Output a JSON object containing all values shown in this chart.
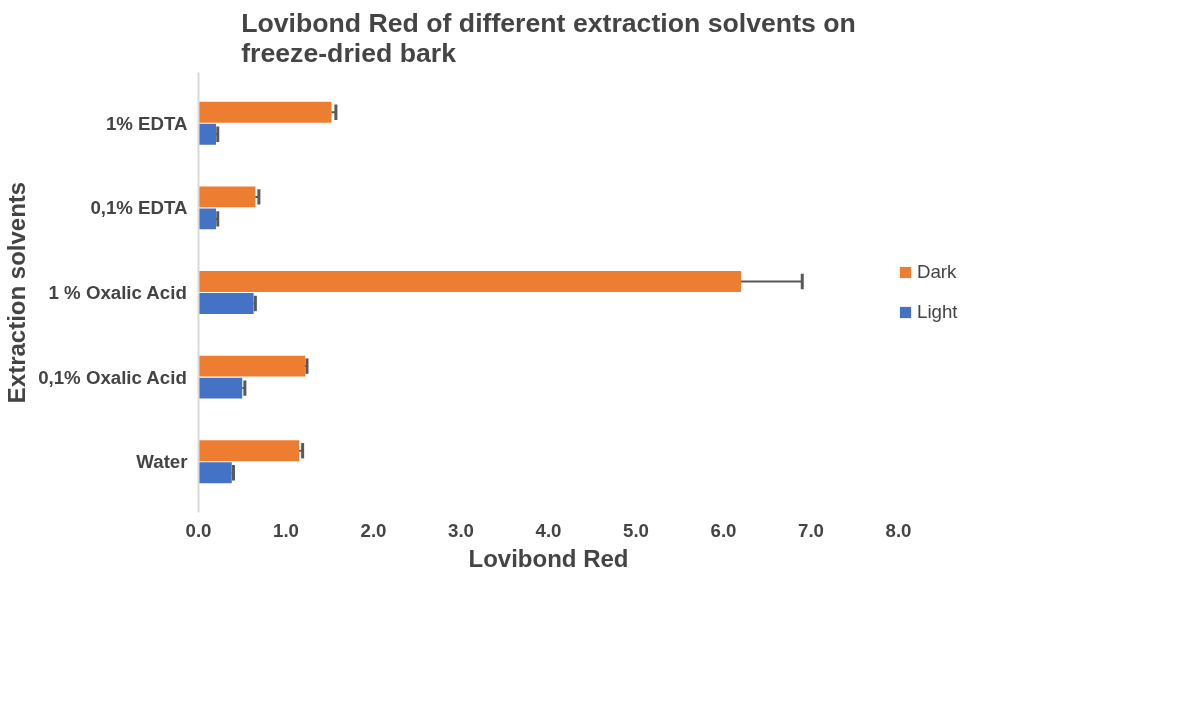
{
  "chart_data": {
    "type": "bar",
    "orientation": "horizontal",
    "title": "Lovibond Red of different extraction solvents on freeze-dried bark",
    "xlabel": "Lovibond Red",
    "ylabel": "Extraction solvents",
    "categories": [
      "1% EDTA",
      "0,1% EDTA",
      "1 % Oxalic Acid",
      "0,1% Oxalic Acid",
      "Water"
    ],
    "series": [
      {
        "name": "Dark",
        "color": "#ed7d31",
        "values": [
          1.52,
          0.65,
          6.2,
          1.22,
          1.15
        ],
        "errors": [
          0.05,
          0.04,
          0.7,
          0.02,
          0.04
        ]
      },
      {
        "name": "Light",
        "color": "#4472c4",
        "values": [
          0.2,
          0.2,
          0.63,
          0.5,
          0.38
        ],
        "errors": [
          0.02,
          0.02,
          0.02,
          0.03,
          0.02
        ]
      }
    ],
    "xlim": [
      0,
      8
    ],
    "xticks": [
      {
        "value": 0,
        "label": "0.0"
      },
      {
        "value": 1,
        "label": "1.0"
      },
      {
        "value": 2,
        "label": "2.0"
      },
      {
        "value": 3,
        "label": "3.0"
      },
      {
        "value": 4,
        "label": "4.0"
      },
      {
        "value": 5,
        "label": "5.0"
      },
      {
        "value": 6,
        "label": "6.0"
      },
      {
        "value": 7,
        "label": "7.0"
      },
      {
        "value": 8,
        "label": "8.0"
      }
    ],
    "grid": false,
    "legend": "right"
  }
}
